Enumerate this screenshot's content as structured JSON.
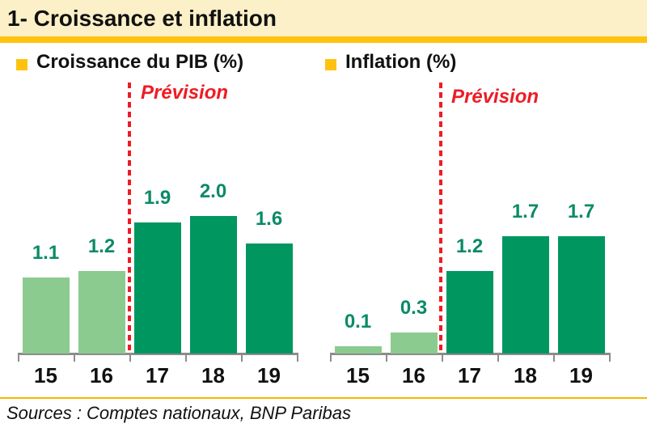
{
  "header": {
    "title": "1- Croissance et inflation"
  },
  "chart_data": [
    {
      "type": "bar",
      "title": "Croissance du PIB (%)",
      "categories": [
        "15",
        "16",
        "17",
        "18",
        "19"
      ],
      "values": [
        1.1,
        1.2,
        1.9,
        2.0,
        1.6
      ],
      "data_labels": [
        "1.1",
        "1.2",
        "1.9",
        "2.0",
        "1.6"
      ],
      "forecast_label": "Prévision",
      "forecast_start_index": 2,
      "ylim": [
        0,
        2.4
      ],
      "grid": false,
      "legend_position": "top-left"
    },
    {
      "type": "bar",
      "title": "Inflation (%)",
      "categories": [
        "15",
        "16",
        "17",
        "18",
        "19"
      ],
      "values": [
        0.1,
        0.3,
        1.2,
        1.7,
        1.7
      ],
      "data_labels": [
        "0.1",
        "0.3",
        "1.2",
        "1.7",
        "1.7"
      ],
      "forecast_label": "Prévision",
      "forecast_start_index": 2,
      "ylim": [
        0,
        2.4
      ],
      "grid": false,
      "legend_position": "top-left"
    }
  ],
  "footer": {
    "sources": "Sources : Comptes nationaux, BNP Paribas"
  },
  "colors": {
    "banner_bg": "#FCF0C8",
    "accent_gold": "#FFC20E",
    "bar_history_green": "#8BCB90",
    "bar_forecast_green": "#009660",
    "value_label_green": "#0B8A68",
    "forecast_red": "#ED1C24",
    "axis_gray": "#8C8C8C"
  },
  "icons": {
    "legend_bullet": "yellow-square"
  }
}
